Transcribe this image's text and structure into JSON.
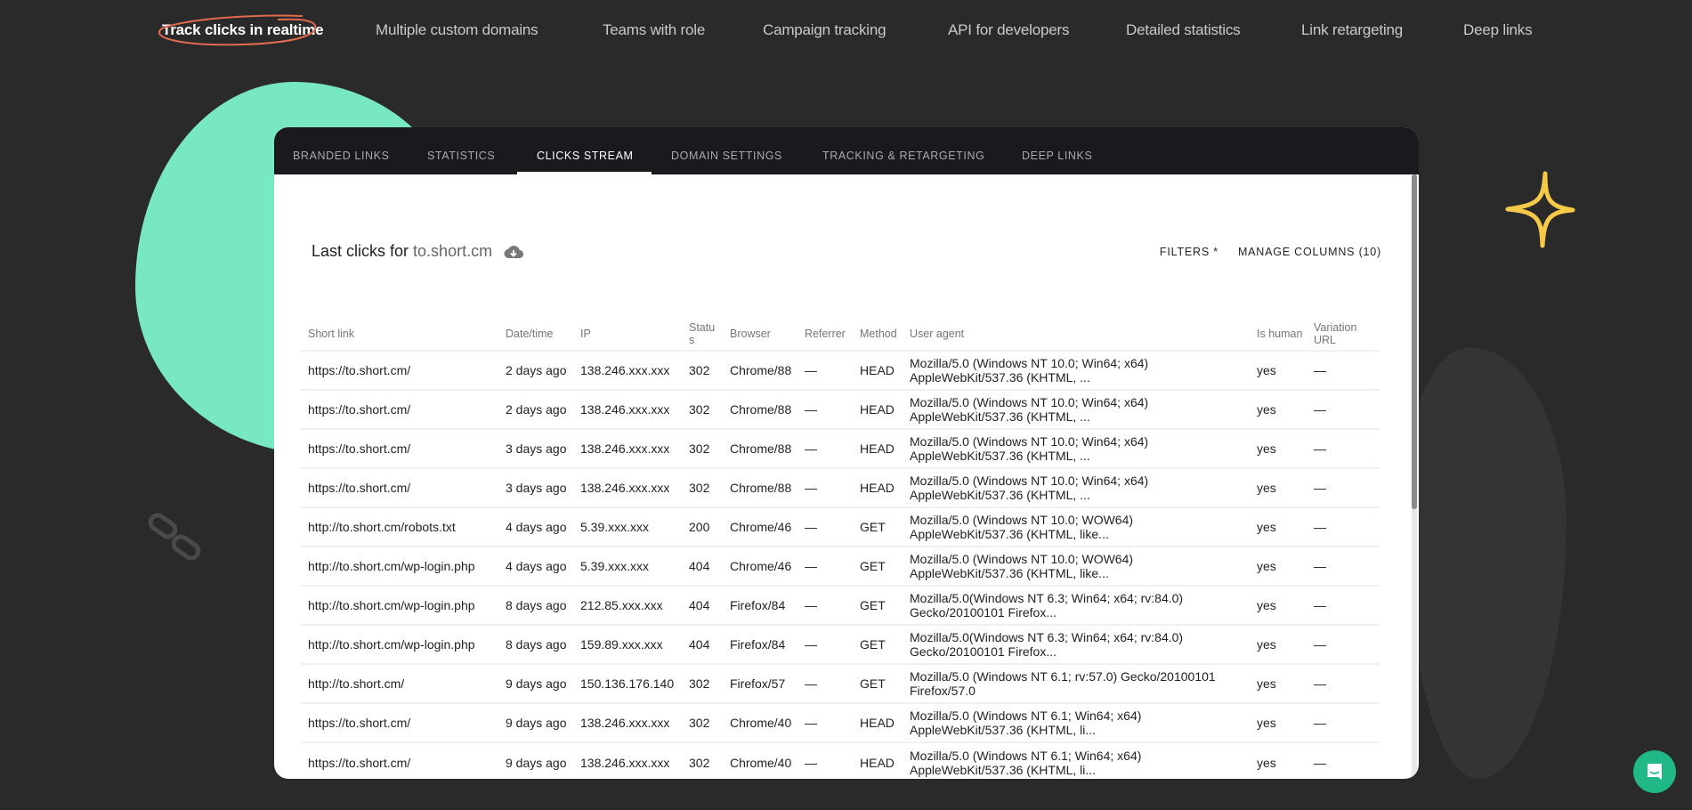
{
  "topnav": {
    "items": [
      {
        "label": "Track clicks in realtime",
        "active": true
      },
      {
        "label": "Multiple custom domains"
      },
      {
        "label": "Teams with role"
      },
      {
        "label": "Campaign tracking"
      },
      {
        "label": "API for developers"
      },
      {
        "label": "Detailed statistics"
      },
      {
        "label": "Link retargeting"
      },
      {
        "label": "Deep links"
      }
    ]
  },
  "colors": {
    "background": "#2a2a2a",
    "accent_blob": "#78e8c2",
    "star": "#f7c948",
    "scribble": "#e06a4e",
    "chat": "#20b886"
  },
  "tabs": [
    {
      "label": "BRANDED LINKS"
    },
    {
      "label": "STATISTICS"
    },
    {
      "label": "CLICKS STREAM",
      "active": true
    },
    {
      "label": "DOMAIN SETTINGS"
    },
    {
      "label": "TRACKING & RETARGETING"
    },
    {
      "label": "DEEP LINKS"
    }
  ],
  "panel": {
    "title_prefix": "Last clicks for",
    "domain": "to.short.cm",
    "download_icon": "cloud-download-icon",
    "filters_label": "FILTERS *",
    "manage_columns_label": "MANAGE COLUMNS (10)"
  },
  "table": {
    "columns": [
      "Short link",
      "Date/time",
      "IP",
      "Status",
      "Browser",
      "Referrer",
      "Method",
      "User agent",
      "Is human",
      "Variation URL"
    ],
    "rows": [
      [
        "https://to.short.cm/",
        "2 days ago",
        "138.246.xxx.xxx",
        "302",
        "Chrome/88",
        "—",
        "HEAD",
        "Mozilla/5.0 (Windows NT 10.0; Win64; x64) AppleWebKit/537.36 (KHTML, ...",
        "yes",
        "—"
      ],
      [
        "https://to.short.cm/",
        "2 days ago",
        "138.246.xxx.xxx",
        "302",
        "Chrome/88",
        "—",
        "HEAD",
        "Mozilla/5.0 (Windows NT 10.0; Win64; x64) AppleWebKit/537.36 (KHTML, ...",
        "yes",
        "—"
      ],
      [
        "https://to.short.cm/",
        "3 days ago",
        "138.246.xxx.xxx",
        "302",
        "Chrome/88",
        "—",
        "HEAD",
        "Mozilla/5.0 (Windows NT 10.0; Win64; x64) AppleWebKit/537.36 (KHTML, ...",
        "yes",
        "—"
      ],
      [
        "https://to.short.cm/",
        "3 days ago",
        "138.246.xxx.xxx",
        "302",
        "Chrome/88",
        "—",
        "HEAD",
        "Mozilla/5.0 (Windows NT 10.0; Win64; x64) AppleWebKit/537.36 (KHTML, ...",
        "yes",
        "—"
      ],
      [
        "http://to.short.cm/robots.txt",
        "4 days ago",
        "5.39.xxx.xxx",
        "200",
        "Chrome/46",
        "—",
        "GET",
        "Mozilla/5.0 (Windows NT 10.0; WOW64) AppleWebKit/537.36 (KHTML, like...",
        "yes",
        "—"
      ],
      [
        "http://to.short.cm/wp-login.php",
        "4 days ago",
        "5.39.xxx.xxx",
        "404",
        "Chrome/46",
        "—",
        "GET",
        "Mozilla/5.0 (Windows NT 10.0; WOW64) AppleWebKit/537.36 (KHTML, like...",
        "yes",
        "—"
      ],
      [
        "http://to.short.cm/wp-login.php",
        "8 days ago",
        "212.85.xxx.xxx",
        "404",
        "Firefox/84",
        "—",
        "GET",
        "Mozilla/5.0(Windows NT 6.3; Win64; x64; rv:84.0) Gecko/20100101 Firefox...",
        "yes",
        "—"
      ],
      [
        "http://to.short.cm/wp-login.php",
        "8 days ago",
        "159.89.xxx.xxx",
        "404",
        "Firefox/84",
        "—",
        "GET",
        "Mozilla/5.0(Windows NT 6.3; Win64; x64; rv:84.0) Gecko/20100101 Firefox...",
        "yes",
        "—"
      ],
      [
        "http://to.short.cm/",
        "9 days ago",
        "150.136.176.140",
        "302",
        "Firefox/57",
        "—",
        "GET",
        "Mozilla/5.0 (Windows NT 6.1; rv:57.0) Gecko/20100101 Firefox/57.0",
        "yes",
        "—"
      ],
      [
        "https://to.short.cm/",
        "9 days ago",
        "138.246.xxx.xxx",
        "302",
        "Chrome/40",
        "—",
        "HEAD",
        "Mozilla/5.0 (Windows NT 6.1; Win64; x64) AppleWebKit/537.36 (KHTML, li...",
        "yes",
        "—"
      ],
      [
        "https://to.short.cm/",
        "9 days ago",
        "138.246.xxx.xxx",
        "302",
        "Chrome/40",
        "—",
        "HEAD",
        "Mozilla/5.0 (Windows NT 6.1; Win64; x64) AppleWebKit/537.36 (KHTML, li...",
        "yes",
        "—"
      ]
    ]
  },
  "chat": {
    "icon": "chat-icon"
  }
}
